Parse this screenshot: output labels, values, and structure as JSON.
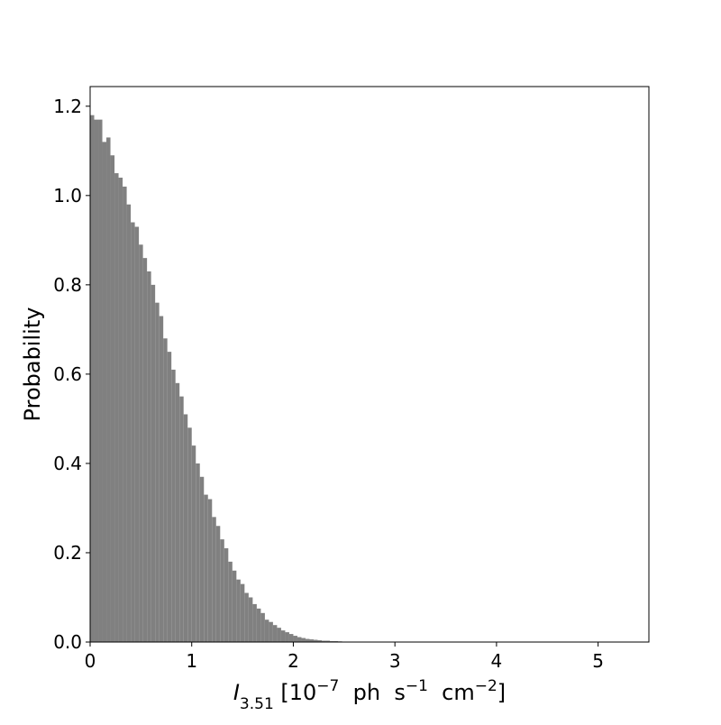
{
  "chart_data": {
    "type": "histogram",
    "ylabel": "Probability",
    "xlabel": [
      "I",
      "3.51",
      " [10",
      "−7",
      "  ph  s",
      "−1",
      "  cm",
      "−2",
      "]"
    ],
    "color": "#808080",
    "bins": [
      0,
      0.04,
      0.08,
      0.12,
      0.16,
      0.2,
      0.24,
      0.28,
      0.32,
      0.36,
      0.4,
      0.44,
      0.48,
      0.52,
      0.56,
      0.6,
      0.64,
      0.68,
      0.72,
      0.76,
      0.8,
      0.84,
      0.88,
      0.92,
      0.96,
      1.0,
      1.04,
      1.08,
      1.12,
      1.16,
      1.2,
      1.24,
      1.28,
      1.32,
      1.36,
      1.4,
      1.44,
      1.48,
      1.52,
      1.56,
      1.6,
      1.64,
      1.68,
      1.72,
      1.76,
      1.8,
      1.84,
      1.88,
      1.92,
      1.96,
      2.0,
      2.04,
      2.08,
      2.12,
      2.16,
      2.2,
      2.24,
      2.28,
      2.32,
      2.36,
      2.4,
      2.44,
      2.48,
      2.52,
      2.56,
      2.6,
      2.64,
      2.68
    ],
    "values": [
      1.18,
      1.17,
      1.17,
      1.12,
      1.13,
      1.09,
      1.05,
      1.04,
      1.02,
      0.98,
      0.94,
      0.93,
      0.89,
      0.86,
      0.83,
      0.8,
      0.76,
      0.73,
      0.68,
      0.65,
      0.61,
      0.58,
      0.55,
      0.51,
      0.48,
      0.44,
      0.4,
      0.37,
      0.33,
      0.32,
      0.28,
      0.26,
      0.23,
      0.21,
      0.18,
      0.16,
      0.14,
      0.13,
      0.11,
      0.1,
      0.085,
      0.075,
      0.065,
      0.05,
      0.045,
      0.038,
      0.032,
      0.026,
      0.022,
      0.018,
      0.014,
      0.011,
      0.009,
      0.007,
      0.006,
      0.005,
      0.004,
      0.003,
      0.003,
      0.002,
      0.002,
      0.0015,
      0.001,
      0.001,
      0.0007,
      0.0005,
      0.0003
    ],
    "xlim": [
      0,
      5.5
    ],
    "ylim": [
      0,
      1.244
    ],
    "xticks": [
      0,
      1,
      2,
      3,
      4,
      5
    ],
    "yticks": [
      {
        "value": 0,
        "label": "0.0"
      },
      {
        "value": 0.2,
        "label": "0.2"
      },
      {
        "value": 0.4,
        "label": "0.4"
      },
      {
        "value": 0.6,
        "label": "0.6"
      },
      {
        "value": 0.8,
        "label": "0.8"
      },
      {
        "value": 1.0,
        "label": "1.0"
      },
      {
        "value": 1.2,
        "label": "1.2"
      }
    ]
  }
}
